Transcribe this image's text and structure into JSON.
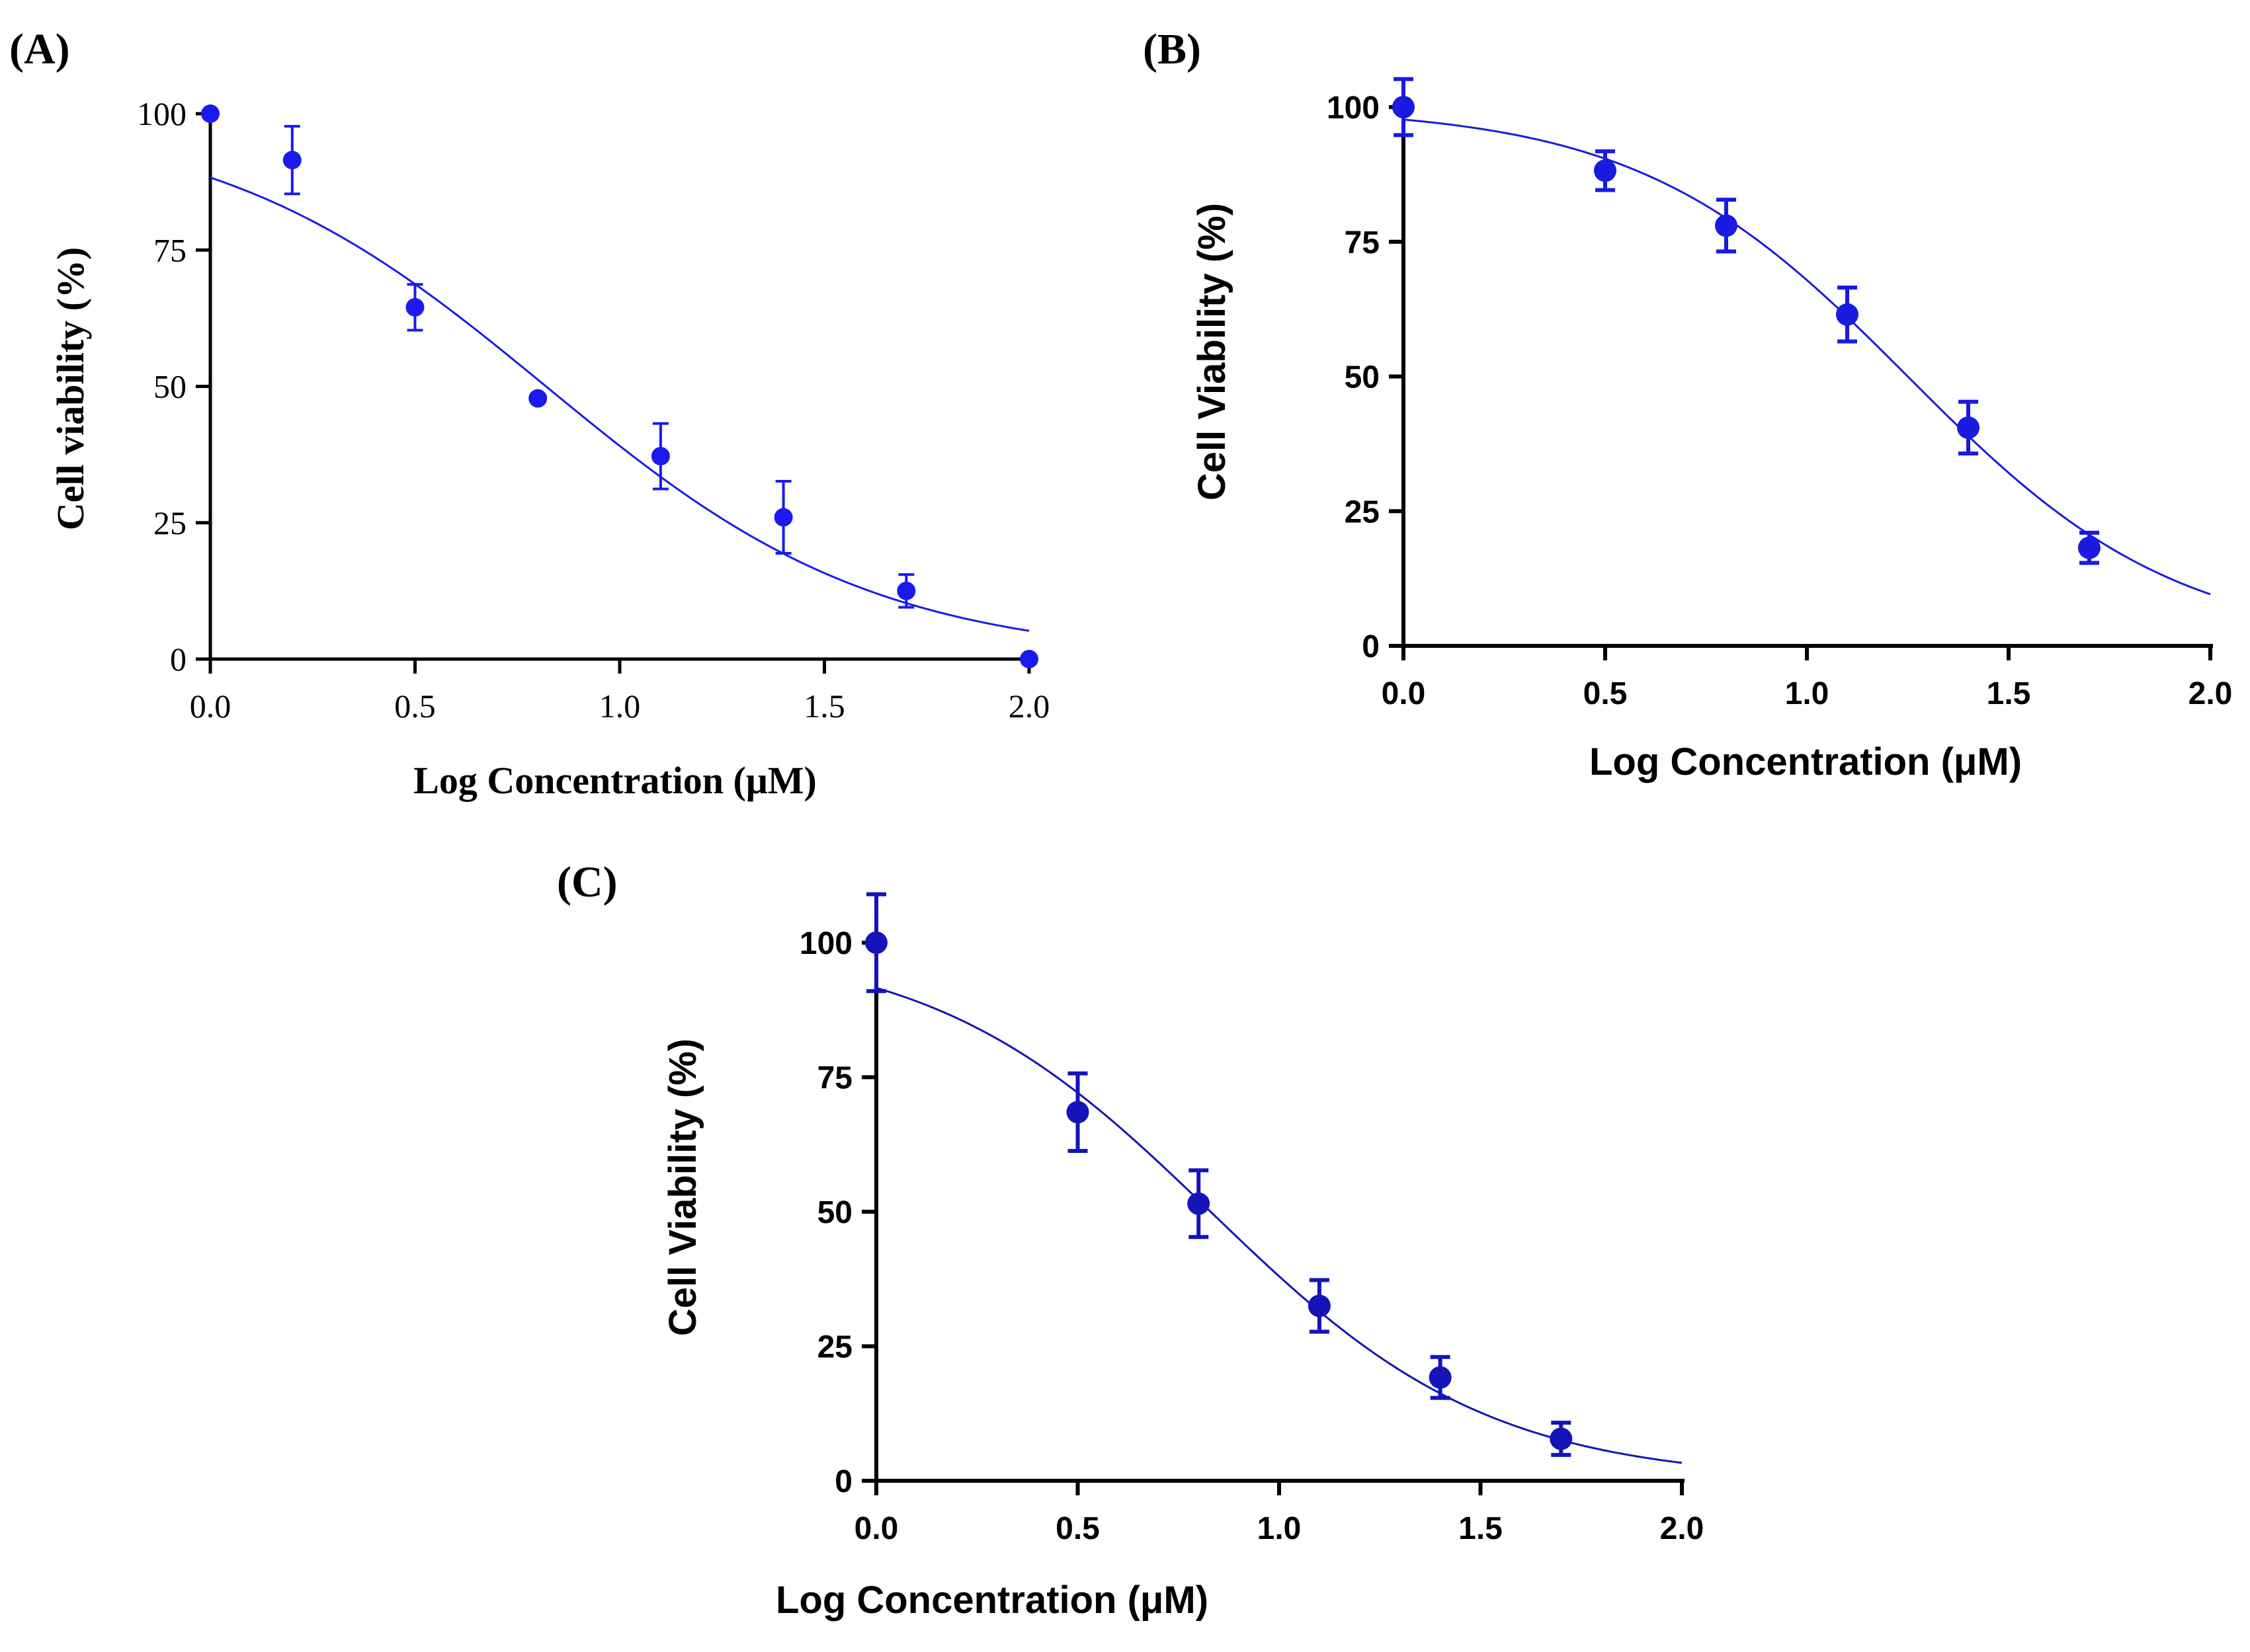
{
  "colors": {
    "panel_a": "#1a1aee",
    "panel_b": "#1a1ae0",
    "panel_c": "#1414b8",
    "axis": "#000000"
  },
  "chart_data": [
    {
      "panel": "(A)",
      "type": "scatter",
      "fit": "sigmoidal dose-response curve",
      "xlabel": "Log Concentration (μM)",
      "ylabel": "Cell viability (%)",
      "xlim": [
        0,
        2
      ],
      "ylim": [
        0,
        100
      ],
      "xticks": [
        0,
        0.5,
        1.0,
        1.5,
        2.0
      ],
      "xtick_labels": [
        "0.0",
        "0.5",
        "1.0",
        "1.5",
        "2.0"
      ],
      "yticks": [
        0,
        25,
        50,
        75,
        100
      ],
      "ytick_labels": [
        "0",
        "25",
        "50",
        "75",
        "100"
      ],
      "points": [
        {
          "x": 0.0,
          "y": 100,
          "err": 0
        },
        {
          "x": 0.2,
          "y": 91.5,
          "err": 6.2
        },
        {
          "x": 0.5,
          "y": 64.5,
          "err": 4.2
        },
        {
          "x": 0.8,
          "y": 47.8,
          "err": 0
        },
        {
          "x": 1.1,
          "y": 37.2,
          "err": 6.0
        },
        {
          "x": 1.4,
          "y": 26.0,
          "err": 6.6
        },
        {
          "x": 1.7,
          "y": 12.5,
          "err": 3.0
        },
        {
          "x": 2.0,
          "y": 0,
          "err": 0
        }
      ],
      "curve": {
        "top": 100,
        "bottom": 0,
        "logIC50": 0.82,
        "hill": 1.07,
        "x_start": 0,
        "x_end": 2.0
      }
    },
    {
      "panel": "(B)",
      "type": "scatter",
      "fit": "sigmoidal dose-response curve",
      "xlabel": "Log Concentration (μM)",
      "ylabel": "Cell Viability (%)",
      "xlim": [
        0,
        2
      ],
      "ylim": [
        0,
        100
      ],
      "xticks": [
        0,
        0.5,
        1.0,
        1.5,
        2.0
      ],
      "xtick_labels": [
        "0.0",
        "0.5",
        "1.0",
        "1.5",
        "2.0"
      ],
      "yticks": [
        0,
        25,
        50,
        75,
        100
      ],
      "ytick_labels": [
        "0",
        "25",
        "50",
        "75",
        "100"
      ],
      "points": [
        {
          "x": 0.0,
          "y": 100,
          "err": 5.2
        },
        {
          "x": 0.5,
          "y": 88.2,
          "err": 3.6
        },
        {
          "x": 0.8,
          "y": 78.0,
          "err": 4.8
        },
        {
          "x": 1.1,
          "y": 61.5,
          "err": 5.0
        },
        {
          "x": 1.4,
          "y": 40.5,
          "err": 4.8
        },
        {
          "x": 1.7,
          "y": 18.2,
          "err": 2.8
        }
      ],
      "curve": {
        "top": 100,
        "bottom": 0,
        "logIC50": 1.25,
        "hill": 1.3,
        "x_start": 0,
        "x_end": 2.0
      }
    },
    {
      "panel": "(C)",
      "type": "scatter",
      "fit": "sigmoidal dose-response curve",
      "xlabel": "Log Concentration (μM)",
      "ylabel": "Cell Viability (%)",
      "xlim": [
        0,
        2
      ],
      "ylim": [
        0,
        100
      ],
      "xticks": [
        0,
        0.5,
        1.0,
        1.5,
        2.0
      ],
      "xtick_labels": [
        "0.0",
        "0.5",
        "1.0",
        "1.5",
        "2.0"
      ],
      "yticks": [
        0,
        25,
        50,
        75,
        100
      ],
      "ytick_labels": [
        "0",
        "25",
        "50",
        "75",
        "100"
      ],
      "points": [
        {
          "x": 0.0,
          "y": 100,
          "err": 9.0
        },
        {
          "x": 0.5,
          "y": 68.5,
          "err": 7.2
        },
        {
          "x": 0.8,
          "y": 51.5,
          "err": 6.2
        },
        {
          "x": 1.1,
          "y": 32.5,
          "err": 4.8
        },
        {
          "x": 1.4,
          "y": 19.2,
          "err": 3.8
        },
        {
          "x": 1.7,
          "y": 7.8,
          "err": 3.0
        }
      ],
      "curve": {
        "top": 100,
        "bottom": 0,
        "logIC50": 0.83,
        "hill": 1.25,
        "x_start": 0,
        "x_end": 2.0
      }
    }
  ]
}
